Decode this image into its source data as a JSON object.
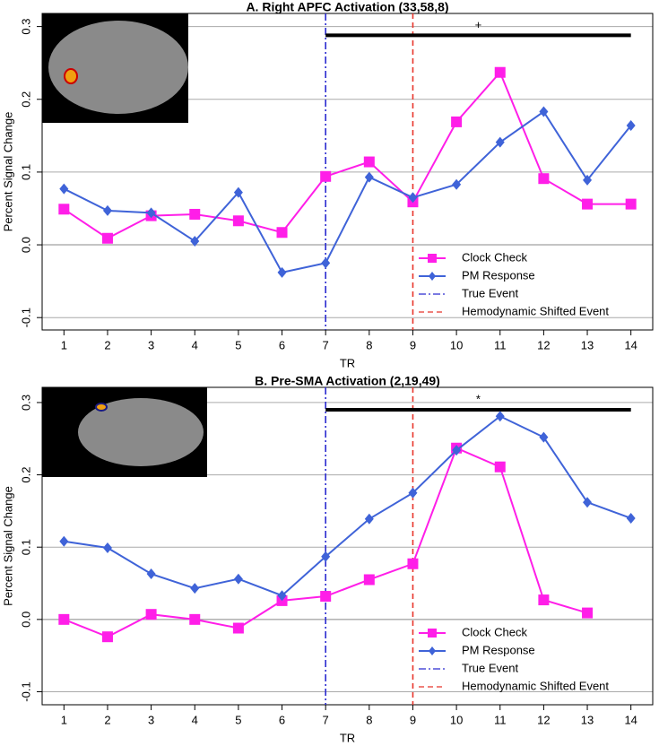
{
  "chart_data": [
    {
      "type": "line",
      "title": "A. Right APFC Activation (33,58,8)",
      "x_label": "TR",
      "y_label": "Percent Signal Change",
      "x": [
        1,
        2,
        3,
        4,
        5,
        6,
        7,
        8,
        9,
        10,
        11,
        12,
        13,
        14
      ],
      "xlim": [
        0.5,
        14.5
      ],
      "xticks": [
        1,
        2,
        3,
        4,
        5,
        6,
        7,
        8,
        9,
        10,
        11,
        12,
        13,
        14
      ],
      "ylim": [
        -0.117,
        0.318
      ],
      "yticks": [
        -0.1,
        {
          "value": 0,
          "label": "0.0"
        },
        0.1,
        0.2,
        0.3
      ],
      "grid": true,
      "series": [
        {
          "name": "Clock Check",
          "color": "#ff1ee8",
          "marker": "square",
          "values": [
            0.049,
            0.009,
            0.04,
            0.042,
            0.033,
            0.017,
            0.094,
            0.114,
            0.059,
            0.169,
            0.237,
            0.091,
            0.056,
            0.056
          ]
        },
        {
          "name": "PM Response",
          "color": "#3f63d8",
          "marker": "diamond",
          "values": [
            0.077,
            0.047,
            0.044,
            0.005,
            0.072,
            -0.038,
            -0.025,
            0.093,
            0.065,
            0.083,
            0.141,
            0.183,
            0.089,
            0.164
          ]
        }
      ],
      "vlines": [
        {
          "name": "True Event",
          "x": 7,
          "color": "#2b2bd0",
          "style": "dashdot"
        },
        {
          "name": "Hemodynamic Shifted Event",
          "x": 9,
          "color": "#e8342a",
          "style": "dashed"
        }
      ],
      "bar_span": [
        7,
        14
      ],
      "bar_y": 0.288,
      "annotation": "+"
    },
    {
      "type": "line",
      "title": "B. Pre-SMA Activation (2,19,49)",
      "x_label": "TR",
      "y_label": "Percent Signal Change",
      "x": [
        1,
        2,
        3,
        4,
        5,
        6,
        7,
        8,
        9,
        10,
        11,
        12,
        13,
        14
      ],
      "xlim": [
        0.5,
        14.5
      ],
      "xticks": [
        1,
        2,
        3,
        4,
        5,
        6,
        7,
        8,
        9,
        10,
        11,
        12,
        13,
        14
      ],
      "ylim": [
        -0.118,
        0.321
      ],
      "yticks": [
        -0.1,
        {
          "value": 0,
          "label": "0.0"
        },
        0.1,
        0.2,
        0.3
      ],
      "grid": true,
      "series": [
        {
          "name": "Clock Check",
          "color": "#ff1ee8",
          "marker": "square",
          "values": [
            0.0,
            -0.024,
            0.007,
            0.0,
            -0.012,
            0.026,
            0.032,
            0.055,
            0.077,
            0.237,
            0.211,
            0.027,
            0.009,
            null
          ]
        },
        {
          "name": "PM Response",
          "color": "#3f63d8",
          "marker": "diamond",
          "values": [
            0.108,
            0.099,
            0.063,
            0.043,
            0.056,
            0.033,
            0.087,
            0.139,
            0.175,
            0.234,
            0.281,
            0.252,
            0.162,
            0.14
          ]
        }
      ],
      "vlines": [
        {
          "name": "True Event",
          "x": 7,
          "color": "#2b2bd0",
          "style": "dashdot"
        },
        {
          "name": "Hemodynamic Shifted Event",
          "x": 9,
          "color": "#e8342a",
          "style": "dashed"
        }
      ],
      "bar_span": [
        7,
        14
      ],
      "bar_y": 0.29,
      "annotation": "*"
    }
  ]
}
